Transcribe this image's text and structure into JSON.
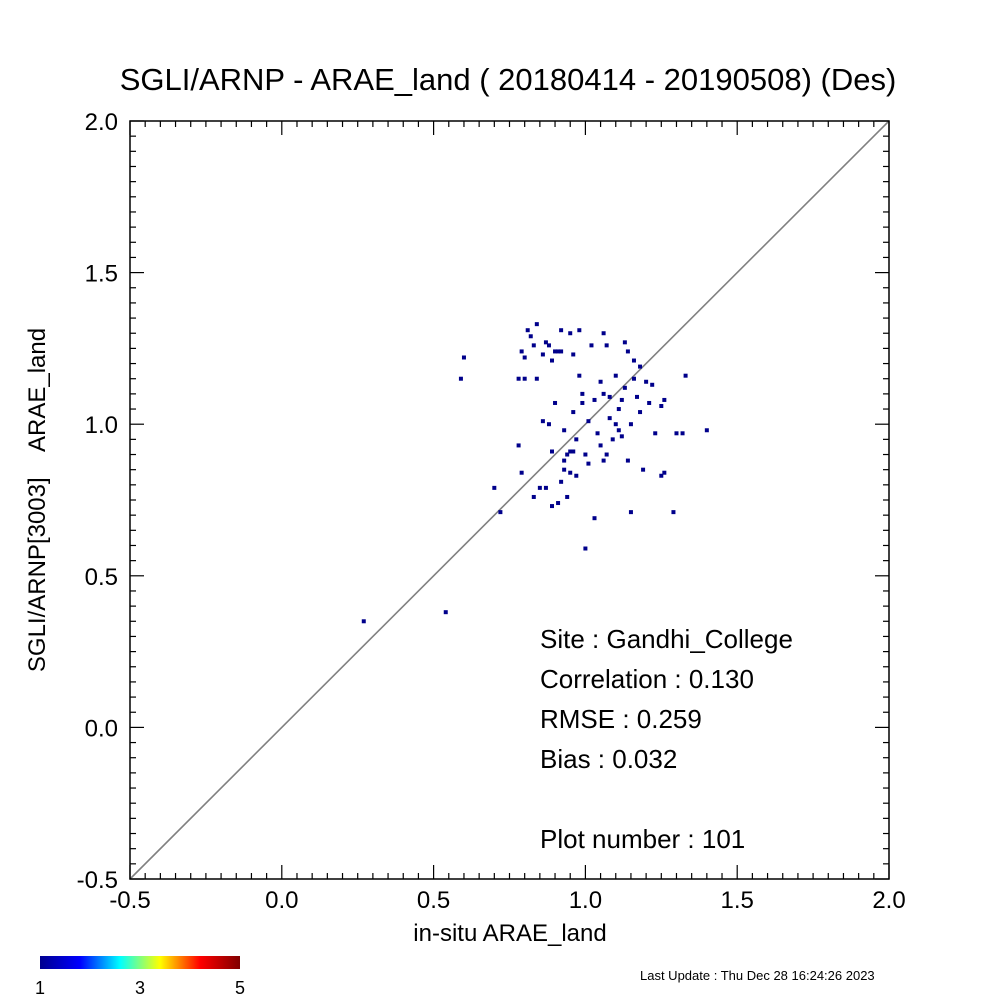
{
  "chart_data": {
    "type": "scatter",
    "title": "SGLI/ARNP - ARAE_land ( 20180414 - 20190508) (Des)",
    "xlabel": "in-situ ARAE_land",
    "ylabel": "SGLI/ARNP[3003]    ARAE_land",
    "xlim": [
      -0.5,
      2.0
    ],
    "ylim": [
      -0.5,
      2.0
    ],
    "x_ticks": [
      "-0.5",
      "0.0",
      "0.5",
      "1.0",
      "1.5",
      "2.0"
    ],
    "y_ticks": [
      "-0.5",
      "0.0",
      "0.5",
      "1.0",
      "1.5",
      "2.0"
    ],
    "reference_line": "1:1",
    "point_color": "#00008b",
    "line_color": "#808080",
    "points": [
      [
        0.27,
        0.35
      ],
      [
        0.54,
        0.38
      ],
      [
        0.59,
        1.15
      ],
      [
        0.6,
        1.22
      ],
      [
        0.7,
        0.79
      ],
      [
        0.72,
        0.71
      ],
      [
        0.78,
        0.93
      ],
      [
        0.78,
        1.15
      ],
      [
        0.79,
        0.84
      ],
      [
        0.79,
        1.24
      ],
      [
        0.8,
        1.22
      ],
      [
        0.8,
        1.15
      ],
      [
        0.81,
        1.31
      ],
      [
        0.82,
        1.29
      ],
      [
        0.83,
        0.76
      ],
      [
        0.83,
        1.26
      ],
      [
        0.84,
        1.33
      ],
      [
        0.84,
        1.15
      ],
      [
        0.85,
        0.79
      ],
      [
        0.86,
        1.23
      ],
      [
        0.86,
        1.01
      ],
      [
        0.87,
        1.27
      ],
      [
        0.87,
        0.79
      ],
      [
        0.88,
        1.26
      ],
      [
        0.88,
        1.0
      ],
      [
        0.89,
        1.21
      ],
      [
        0.89,
        0.91
      ],
      [
        0.89,
        0.73
      ],
      [
        0.9,
        1.07
      ],
      [
        0.9,
        1.24
      ],
      [
        0.91,
        1.24
      ],
      [
        0.91,
        0.74
      ],
      [
        0.92,
        1.24
      ],
      [
        0.92,
        1.31
      ],
      [
        0.92,
        0.81
      ],
      [
        0.93,
        0.85
      ],
      [
        0.93,
        0.88
      ],
      [
        0.93,
        0.98
      ],
      [
        0.94,
        0.9
      ],
      [
        0.94,
        0.76
      ],
      [
        0.95,
        0.91
      ],
      [
        0.95,
        1.3
      ],
      [
        0.95,
        0.84
      ],
      [
        0.96,
        1.23
      ],
      [
        0.96,
        0.91
      ],
      [
        0.96,
        1.04
      ],
      [
        0.97,
        0.95
      ],
      [
        0.97,
        0.83
      ],
      [
        0.98,
        1.31
      ],
      [
        0.98,
        1.16
      ],
      [
        0.99,
        1.1
      ],
      [
        0.99,
        1.07
      ],
      [
        1.0,
        0.59
      ],
      [
        1.0,
        0.9
      ],
      [
        1.01,
        1.01
      ],
      [
        1.01,
        0.87
      ],
      [
        1.02,
        1.26
      ],
      [
        1.03,
        1.08
      ],
      [
        1.03,
        0.69
      ],
      [
        1.04,
        0.97
      ],
      [
        1.05,
        1.14
      ],
      [
        1.05,
        0.93
      ],
      [
        1.06,
        1.1
      ],
      [
        1.06,
        0.88
      ],
      [
        1.06,
        1.3
      ],
      [
        1.07,
        1.26
      ],
      [
        1.07,
        0.9
      ],
      [
        1.08,
        1.02
      ],
      [
        1.08,
        1.09
      ],
      [
        1.09,
        0.95
      ],
      [
        1.1,
        1.0
      ],
      [
        1.1,
        1.16
      ],
      [
        1.11,
        0.98
      ],
      [
        1.11,
        1.05
      ],
      [
        1.12,
        1.08
      ],
      [
        1.12,
        0.96
      ],
      [
        1.13,
        1.27
      ],
      [
        1.13,
        1.12
      ],
      [
        1.14,
        1.24
      ],
      [
        1.14,
        0.88
      ],
      [
        1.15,
        0.71
      ],
      [
        1.15,
        1.0
      ],
      [
        1.16,
        1.15
      ],
      [
        1.16,
        1.21
      ],
      [
        1.17,
        1.09
      ],
      [
        1.18,
        1.04
      ],
      [
        1.18,
        1.19
      ],
      [
        1.19,
        0.85
      ],
      [
        1.2,
        1.14
      ],
      [
        1.21,
        1.07
      ],
      [
        1.22,
        1.13
      ],
      [
        1.23,
        0.97
      ],
      [
        1.25,
        1.06
      ],
      [
        1.25,
        0.83
      ],
      [
        1.26,
        0.84
      ],
      [
        1.26,
        1.08
      ],
      [
        1.29,
        0.71
      ],
      [
        1.3,
        0.97
      ],
      [
        1.32,
        0.97
      ],
      [
        1.33,
        1.16
      ],
      [
        1.4,
        0.98
      ]
    ],
    "stats": {
      "site": "Site : Gandhi_College",
      "correlation": "Correlation :    0.130",
      "rmse": "RMSE :    0.259",
      "bias": "Bias :    0.032",
      "plot_number": "Plot number :        101"
    },
    "colorbar": {
      "labels": [
        "1",
        "3",
        "5"
      ],
      "values": [
        1,
        3,
        5
      ],
      "colors": [
        "#00008f",
        "#0000ff",
        "#00ffff",
        "#ffff00",
        "#ff0000",
        "#800000"
      ]
    }
  },
  "footer": {
    "last_update": "Last Update : Thu Dec 28 16:24:26 2023"
  }
}
